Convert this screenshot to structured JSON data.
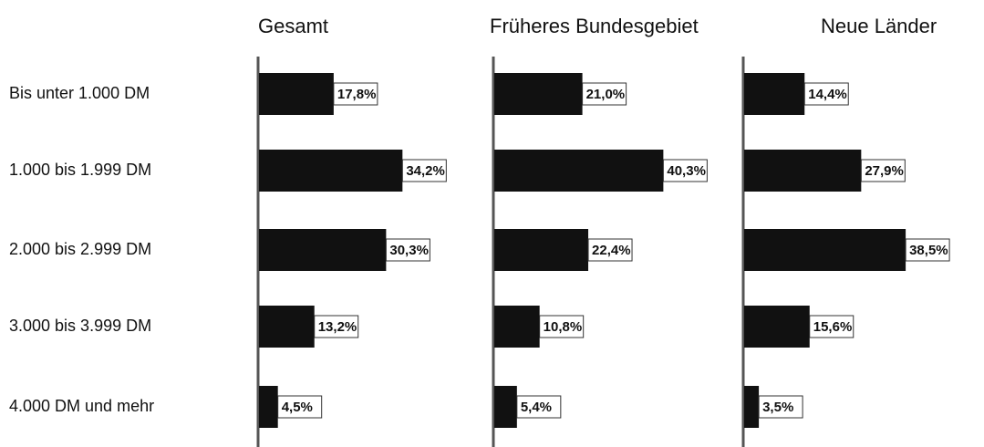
{
  "chart_data": {
    "type": "bar",
    "orientation": "horizontal",
    "categories": [
      "Bis unter 1.000 DM",
      "1.000 bis 1.999 DM",
      "2.000 bis 2.999 DM",
      "3.000 bis 3.999 DM",
      "4.000 DM und mehr"
    ],
    "series": [
      {
        "name": "Gesamt",
        "color": "#111111",
        "values": [
          17.8,
          34.2,
          30.3,
          13.2,
          4.5
        ],
        "value_labels": [
          "17,8%",
          "34,2%",
          "30,3%",
          "13,2%",
          "4,5%"
        ]
      },
      {
        "name": "Früheres Bundesgebiet",
        "color": "#111111",
        "values": [
          21.0,
          40.3,
          22.4,
          10.8,
          5.4
        ],
        "value_labels": [
          "21,0%",
          "40,3%",
          "22,4%",
          "10,8%",
          "5,4%"
        ]
      },
      {
        "name": "Neue Länder",
        "color": "#111111",
        "values": [
          14.4,
          27.9,
          38.5,
          15.6,
          3.5
        ],
        "value_labels": [
          "14,4%",
          "27,9%",
          "38,5%",
          "15,6%",
          "3,5%"
        ]
      }
    ]
  }
}
